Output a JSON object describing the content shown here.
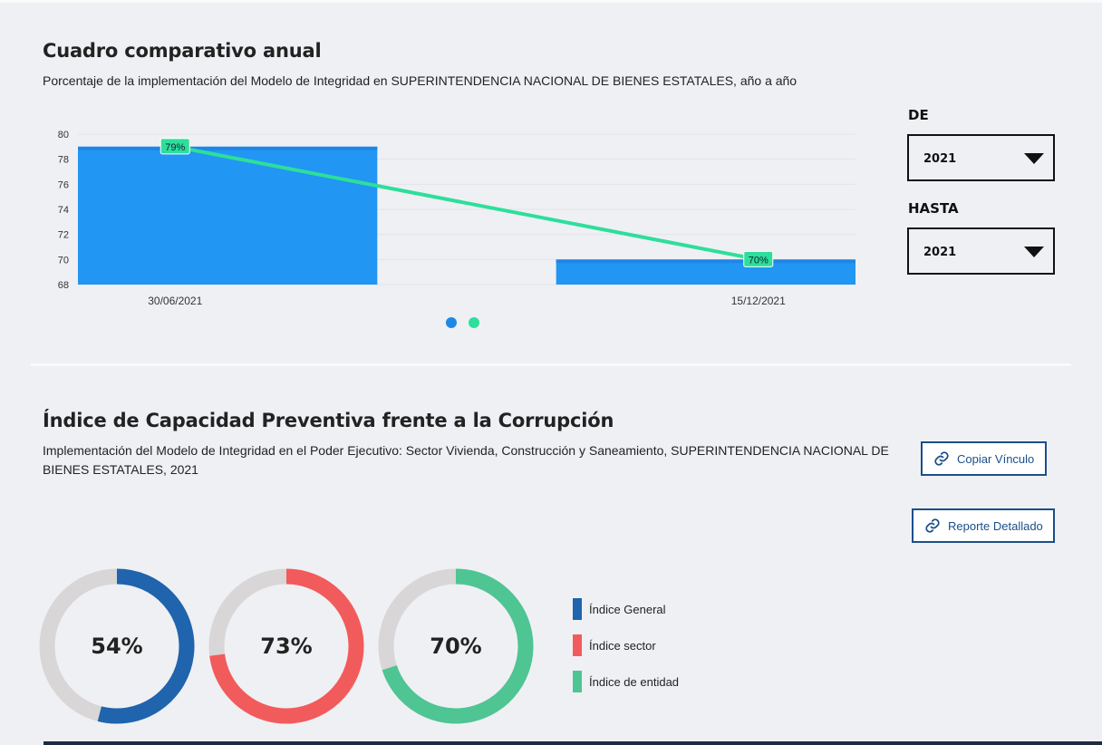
{
  "comparativo": {
    "title": "Cuadro comparativo anual",
    "subtitle": "Porcentaje de la implementación del Modelo de Integridad en SUPERINTENDENCIA NACIONAL DE BIENES ESTATALES, año a año"
  },
  "filters": {
    "from_label": "DE",
    "from_value": "2021",
    "to_label": "HASTA",
    "to_value": "2021"
  },
  "chart_data": {
    "type": "bar",
    "categories": [
      "30/06/2021",
      "15/12/2021"
    ],
    "series": [
      {
        "values": [
          79,
          70
        ],
        "color": "#2196f3",
        "kind": "bar"
      },
      {
        "values": [
          79,
          70
        ],
        "color": "#2ddf9a",
        "kind": "line"
      }
    ],
    "data_labels": [
      "79%",
      "70%"
    ],
    "ylim": [
      68,
      80
    ],
    "yticks": [
      "68",
      "70",
      "72",
      "74",
      "76",
      "78",
      "80"
    ],
    "grid": true,
    "pager_colors": [
      "#1e88e5",
      "#2ddf9a"
    ]
  },
  "indice": {
    "title": "Índice de Capacidad Preventiva frente a la Corrupción",
    "subtitle_line1": "Implementación del Modelo de Integridad en el Poder Ejecutivo: Sector Vivienda, Construcción y Saneamiento, SUPERINTENDENCIA NACIONAL DE",
    "subtitle_line2": "BIENES ESTATALES, 2021",
    "copy_button": "Copiar Vínculo",
    "report_button": "Reporte Detallado"
  },
  "donuts": [
    {
      "label": "54%",
      "value": 54,
      "color": "#1f64ad"
    },
    {
      "label": "73%",
      "value": 73,
      "color": "#f25b5b"
    },
    {
      "label": "70%",
      "value": 70,
      "color": "#4ec593"
    }
  ],
  "legend": [
    {
      "label": "Índice General",
      "color": "#1f64ad"
    },
    {
      "label": "Índice sector",
      "color": "#f25b5b"
    },
    {
      "label": "Índice de entidad",
      "color": "#4ec593"
    }
  ],
  "colors": {
    "track": "#d8d6d6",
    "accent": "#1b4f8a"
  },
  "icons": {
    "link": "link-icon",
    "caret": "caret-down-icon"
  }
}
